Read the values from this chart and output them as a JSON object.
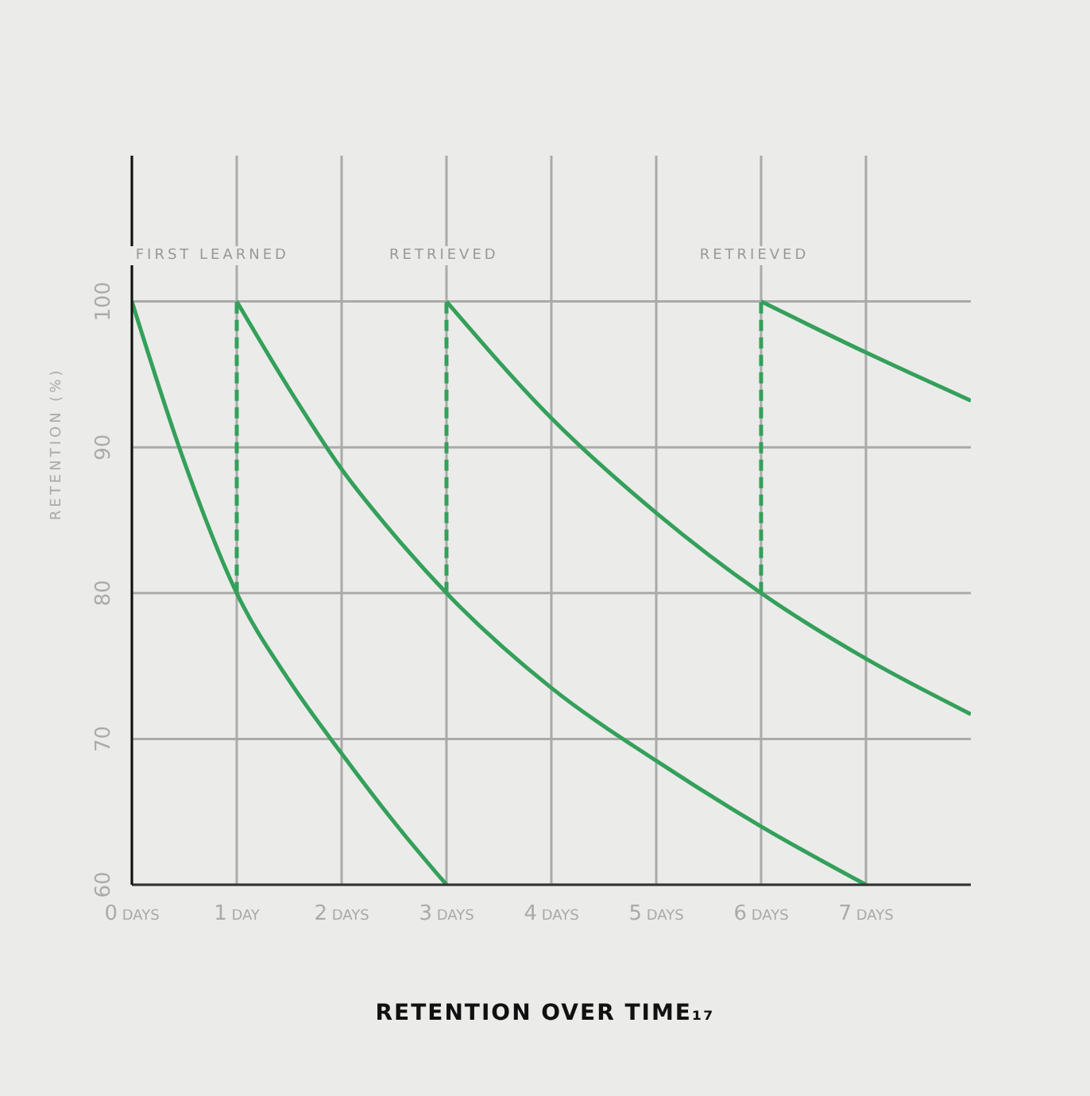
{
  "chart_data": {
    "type": "line",
    "title": "RETENTION OVER TIME₁₇",
    "ylabel": "RETENTION (%)",
    "xlim": [
      0,
      8
    ],
    "xticks": [
      {
        "value": 0,
        "label": "0 DAYS"
      },
      {
        "value": 1,
        "label": "1 DAY"
      },
      {
        "value": 2,
        "label": "2 DAYS"
      },
      {
        "value": 3,
        "label": "3 DAYS"
      },
      {
        "value": 4,
        "label": "4 DAYS"
      },
      {
        "value": 5,
        "label": "5 DAYS"
      },
      {
        "value": 6,
        "label": "6 DAYS"
      },
      {
        "value": 7,
        "label": "7 DAYS"
      }
    ],
    "ylim": [
      60,
      110
    ],
    "yticks": [
      60,
      70,
      80,
      90,
      100
    ],
    "grid": true,
    "line_style": "solid",
    "marker": "none",
    "series": [
      {
        "color": "#34a05a",
        "x": [
          0,
          0.5,
          1,
          1.5,
          2,
          2.5,
          3
        ],
        "values": [
          100,
          89,
          80,
          74,
          69,
          64.3,
          60
        ]
      },
      {
        "color": "#34a05a",
        "x": [
          1,
          1.5,
          2,
          2.5,
          3,
          4,
          5,
          6,
          7
        ],
        "values": [
          100,
          94,
          88.5,
          84,
          80,
          73.5,
          68.5,
          64,
          60
        ]
      },
      {
        "color": "#34a05a",
        "x": [
          3,
          4,
          5,
          6,
          7,
          8
        ],
        "values": [
          100,
          92,
          85.5,
          80,
          75.5,
          71.7
        ]
      },
      {
        "color": "#34a05a",
        "x": [
          6,
          7,
          8
        ],
        "values": [
          100,
          96.5,
          93.2
        ]
      },
      {
        "color": "#34a05a",
        "line_style": "dashed",
        "x": [
          1,
          1
        ],
        "values": [
          80,
          100
        ]
      },
      {
        "color": "#34a05a",
        "line_style": "dashed",
        "x": [
          3,
          3
        ],
        "values": [
          80,
          100
        ]
      },
      {
        "color": "#34a05a",
        "line_style": "dashed",
        "x": [
          6,
          6
        ],
        "values": [
          80,
          100
        ]
      }
    ],
    "annotations": [
      "FIRST LEARNED",
      "RETRIEVED",
      "RETRIEVED"
    ]
  }
}
